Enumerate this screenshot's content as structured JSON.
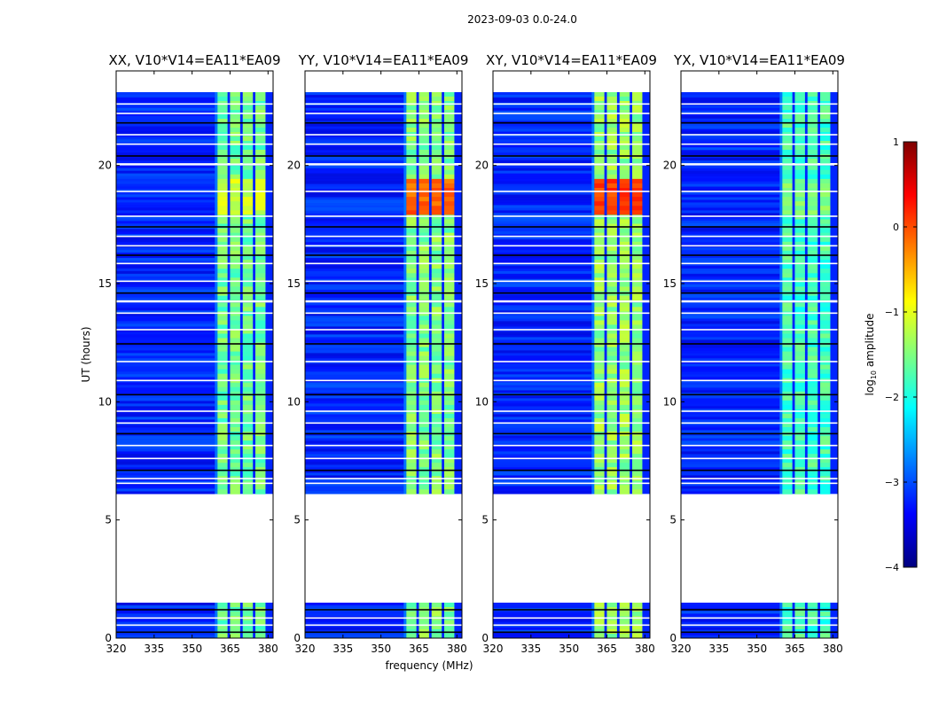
{
  "figure": {
    "suptitle": "2023-09-03 0.0-24.0",
    "ylabel": "UT (hours)",
    "xlabel": "frequency (MHz)"
  },
  "colorbar": {
    "label_prefix": "log",
    "label_sub": "10",
    "label_suffix": " amplitude",
    "range": [
      -4,
      1
    ],
    "ticks": [
      1,
      0,
      -1,
      -2,
      -3,
      -4
    ],
    "tick_labels": [
      "1",
      "0",
      "−1",
      "−2",
      "−3",
      "−4"
    ],
    "colormap": "jet",
    "colors": [
      "#00007f",
      "#0000ff",
      "#007fff",
      "#00ffff",
      "#7fff7f",
      "#ffff00",
      "#ff7f00",
      "#ff0000",
      "#7f0000"
    ]
  },
  "chart_data": {
    "type": "heatmap",
    "x": {
      "range": [
        320,
        382
      ],
      "ticks": [
        320,
        335,
        350,
        365,
        380
      ],
      "tick_labels": [
        "320",
        "335",
        "350",
        "365",
        "380"
      ],
      "unit": "MHz"
    },
    "y": {
      "range": [
        0,
        24
      ],
      "ticks": [
        0,
        5,
        10,
        15,
        20
      ],
      "tick_labels": [
        "0",
        "5",
        "10",
        "15",
        "20"
      ],
      "unit": "hours"
    },
    "value": "log10 amplitude",
    "background_log_amp": -3.2,
    "data_blocks_hours": [
      [
        0.0,
        1.5
      ],
      [
        6.1,
        14.2
      ],
      [
        14.3,
        20.0
      ],
      [
        20.1,
        23.1
      ]
    ],
    "gap_lines_hours": [
      0.25,
      0.55,
      0.85,
      1.2,
      6.55,
      6.75,
      7.1,
      7.6,
      8.15,
      8.65,
      9.1,
      9.6,
      10.3,
      10.9,
      11.7,
      12.45,
      13.05,
      13.75,
      14.6,
      15.1,
      15.85,
      16.2,
      16.6,
      17.0,
      17.4,
      17.85,
      18.9,
      20.4,
      20.9,
      21.3,
      21.8,
      22.2,
      22.6
    ],
    "strong_band_mhz": [
      359,
      381
    ],
    "band_columns_mhz": [
      [
        360,
        364
      ],
      [
        365,
        369
      ],
      [
        370,
        374
      ],
      [
        375,
        379
      ]
    ],
    "panels": [
      {
        "title": "XX, V10*V14=EA11*EA09",
        "band_level": -1.6,
        "peak": {
          "hours": [
            18.0,
            19.4
          ],
          "level": -1.1
        }
      },
      {
        "title": "YY, V10*V14=EA11*EA09",
        "band_level": -1.5,
        "peak": {
          "hours": [
            18.0,
            19.4
          ],
          "level": -0.1
        }
      },
      {
        "title": "XY, V10*V14=EA11*EA09",
        "band_level": -1.4,
        "peak": {
          "hours": [
            18.0,
            19.4
          ],
          "level": 0.1
        }
      },
      {
        "title": "YX, V10*V14=EA11*EA09",
        "band_level": -1.8,
        "peak": {
          "hours": [
            18.0,
            19.4
          ],
          "level": -1.5
        }
      }
    ]
  }
}
